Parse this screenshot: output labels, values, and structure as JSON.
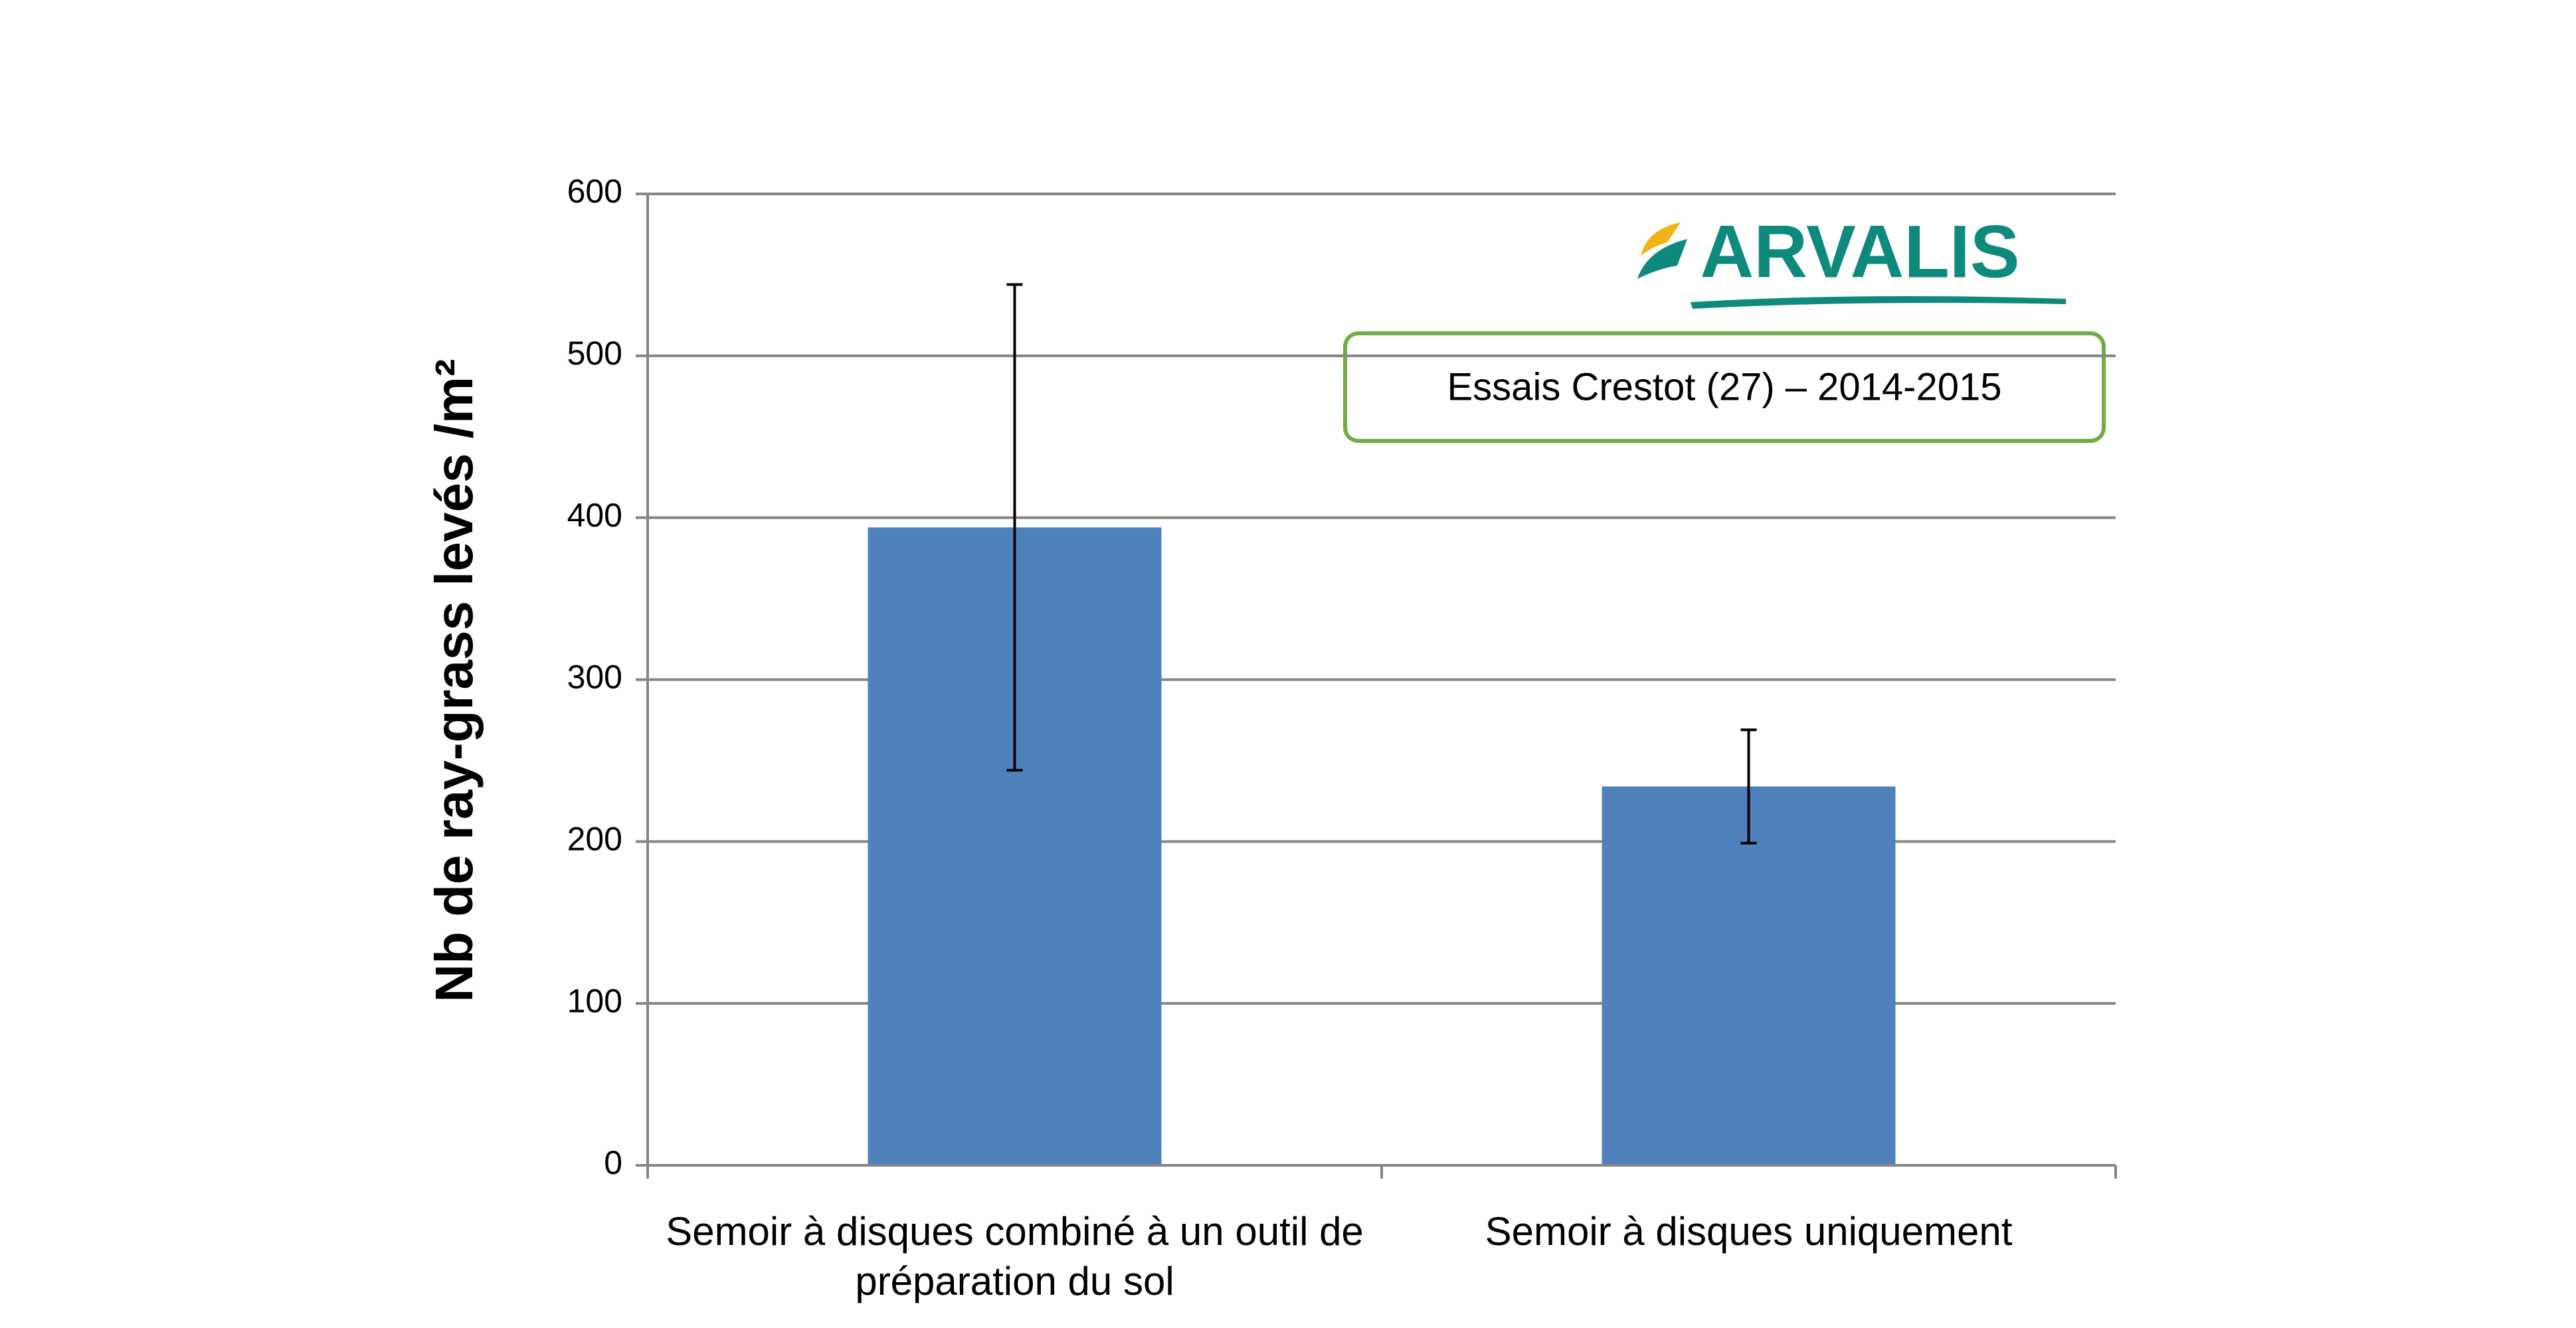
{
  "chart_data": {
    "type": "bar",
    "y_label": "Nb de ray-grass levés /m²",
    "categories": [
      "Semoir à disques combiné à un outil de préparation du sol",
      "Semoir à disques uniquement"
    ],
    "values": [
      394,
      234
    ],
    "errors": [
      150,
      35
    ],
    "color": "#4f81bd",
    "ylim": [
      0,
      600
    ],
    "yticks": [
      0,
      100,
      200,
      300,
      400,
      500,
      600
    ],
    "grid": true,
    "annotation": "Essais Crestot (27) – 2014-2015",
    "logo": "ARVALIS"
  }
}
